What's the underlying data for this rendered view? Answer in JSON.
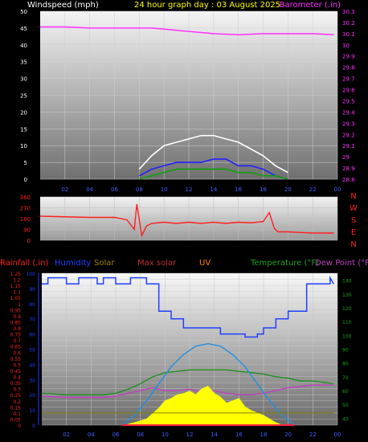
{
  "chart_data": [
    {
      "type": "line",
      "header": {
        "left": "Windspeed (mph)",
        "center": "24 hour graph day : 03 August 2025",
        "right": "Barometer (.in)"
      },
      "left_ticks": [
        "0",
        "5",
        "10",
        "15",
        "20",
        "25",
        "30",
        "35",
        "40",
        "45",
        "50"
      ],
      "right_ticks": [
        "28.8",
        "28.9",
        "29",
        "29.1",
        "29.2",
        "29.3",
        "29.4",
        "29.5",
        "29.6",
        "29.7",
        "29.8",
        "29.9",
        "30",
        "30.1",
        "30.2",
        "30.3"
      ],
      "x_ticks": [
        "02",
        "04",
        "06",
        "08",
        "10",
        "12",
        "14",
        "16",
        "18",
        "20",
        "22",
        "00"
      ],
      "ylim_left": [
        0,
        50
      ],
      "ylim_right": [
        28.8,
        30.3
      ],
      "series": [
        {
          "name": "Barometer (.in)",
          "color": "#ff30ff",
          "x": [
            0,
            2,
            4,
            6,
            8,
            9,
            10,
            12,
            14,
            16,
            18,
            20,
            22,
            23.7
          ],
          "values": [
            30.16,
            30.16,
            30.15,
            30.15,
            30.15,
            30.15,
            30.14,
            30.12,
            30.1,
            30.09,
            30.1,
            30.1,
            30.1,
            30.09
          ]
        },
        {
          "color": "#ffffff",
          "x": [
            8,
            9,
            10,
            11,
            12,
            13,
            14,
            15,
            16,
            17,
            18,
            19,
            20
          ],
          "values": [
            3,
            7,
            10,
            11,
            12,
            13,
            13,
            12,
            11,
            9,
            7,
            4,
            2
          ]
        },
        {
          "color": "#2020ff",
          "x": [
            8,
            9,
            10,
            11,
            12,
            13,
            14,
            15,
            16,
            17,
            18,
            19,
            20
          ],
          "values": [
            1,
            3,
            4,
            5,
            5,
            5,
            6,
            6,
            4,
            4,
            3,
            1,
            0
          ]
        },
        {
          "color": "#10a010",
          "x": [
            8,
            9,
            10,
            11,
            12,
            13,
            14,
            15,
            16,
            17,
            18,
            19,
            20
          ],
          "values": [
            0,
            1,
            2,
            3,
            3,
            3,
            3,
            3,
            2,
            2,
            1,
            1,
            0
          ]
        }
      ]
    },
    {
      "type": "line",
      "direction_labels": [
        "N",
        "W",
        "S",
        "E",
        "N"
      ],
      "left_ticks": [
        "0",
        "90",
        "180",
        "270",
        "360"
      ],
      "x_ticks": [],
      "ylim": [
        0,
        360
      ],
      "series": [
        {
          "color": "#ff2020",
          "x": [
            0,
            2,
            4,
            6,
            7,
            7.6,
            7.8,
            8.2,
            8.6,
            9,
            10,
            11,
            12,
            13,
            14,
            15,
            16,
            17,
            18,
            18.5,
            18.9,
            19.2,
            20,
            22,
            23.7
          ],
          "values": [
            200,
            195,
            190,
            190,
            170,
            90,
            300,
            40,
            120,
            140,
            150,
            140,
            150,
            140,
            150,
            140,
            150,
            145,
            155,
            230,
            100,
            70,
            70,
            60,
            60
          ]
        }
      ]
    },
    {
      "type": "line",
      "header": {
        "rain": "Rainfall (.in)",
        "humidity": "Humidity",
        "solar": "Solar",
        "max_solar": "Max solar",
        "uv": "UV",
        "temperature": "Temperature (°F)",
        "dew_point": "Dew Point (°F)"
      },
      "left_ticks": [
        "0",
        "0.05",
        "0.1",
        "0.15",
        "0.2",
        "0.25",
        "0.3",
        "0.35",
        "0.4",
        "0.45",
        "0.5",
        "0.55",
        "0.6",
        "0.65",
        "0.7",
        "0.75",
        "0.8",
        "0.85",
        "0.9",
        "0.95",
        "1",
        "1.05",
        "1.1",
        "1.15",
        "1.2",
        "1.25"
      ],
      "humidity_ticks": [
        "0",
        "10",
        "20",
        "30",
        "40",
        "50",
        "60",
        "70",
        "80",
        "90",
        "100"
      ],
      "right_ticks": [
        "40",
        "50",
        "60",
        "70",
        "80",
        "90",
        "100",
        "110",
        "120",
        "130",
        "140"
      ],
      "x_ticks": [
        "02",
        "04",
        "06",
        "08",
        "10",
        "12",
        "14",
        "16",
        "18",
        "20",
        "22",
        "00"
      ],
      "ylim_left": [
        0,
        1.25
      ],
      "ylim_right": [
        35,
        145
      ],
      "series": [
        {
          "name": "Humidity",
          "color": "#2040ff",
          "x": [
            0,
            0.5,
            0.5,
            2,
            2,
            3,
            3,
            4.5,
            4.5,
            5,
            5,
            6,
            6,
            7.2,
            7.2,
            8.5,
            8.5,
            9.5,
            9.5,
            10.5,
            10.5,
            11.5,
            11.5,
            14.5,
            14.5,
            16.5,
            16.5,
            17.5,
            17.5,
            18,
            18,
            19,
            19,
            20,
            20,
            21.5,
            21.5,
            23.4,
            23.4,
            23.7
          ],
          "values": [
            93,
            93,
            97,
            97,
            93,
            93,
            97,
            97,
            93,
            93,
            97,
            97,
            93,
            93,
            97,
            97,
            93,
            93,
            75,
            75,
            70,
            70,
            64,
            64,
            60,
            60,
            58,
            58,
            60,
            60,
            64,
            64,
            70,
            70,
            75,
            75,
            93,
            93,
            97,
            93
          ]
        },
        {
          "name": "Temperature (°F)",
          "color": "#209020",
          "x": [
            0,
            2,
            4,
            5,
            6,
            7,
            8,
            9,
            10,
            11,
            12,
            13,
            14,
            15,
            16,
            17,
            18,
            19,
            20,
            21,
            22,
            23.7
          ],
          "values": [
            58,
            57,
            57,
            57,
            58,
            61,
            65,
            70,
            73,
            74,
            75,
            75,
            75,
            75,
            74,
            73,
            72,
            70,
            69,
            67,
            67,
            65
          ]
        },
        {
          "name": "Dew Point (°F)",
          "color": "#c040c0",
          "x": [
            0,
            2,
            4,
            5,
            6,
            7,
            8,
            9,
            10,
            11,
            12,
            13,
            14,
            15,
            16,
            17,
            18,
            19,
            20,
            21,
            22,
            23.7
          ],
          "values": [
            56,
            55,
            55,
            55,
            56,
            58,
            60,
            62,
            60,
            60,
            61,
            59,
            60,
            58,
            57,
            57,
            58,
            60,
            62,
            63,
            64,
            64
          ]
        },
        {
          "name": "UV",
          "color": "#2090e0",
          "x": [
            6.5,
            7.5,
            8.5,
            9.5,
            10.5,
            11.5,
            12.5,
            13.5,
            14.5,
            15.5,
            16.5,
            17.5,
            18.5,
            19.5,
            20.5
          ],
          "values": [
            0,
            0.08,
            0.2,
            0.34,
            0.48,
            0.58,
            0.65,
            0.67,
            0.65,
            0.58,
            0.48,
            0.34,
            0.2,
            0.08,
            0
          ]
        },
        {
          "name": "Solar",
          "color": "#ffff00",
          "x": [
            6.7,
            7.5,
            8.5,
            9.5,
            10,
            10.5,
            11,
            11.5,
            12,
            12.5,
            13,
            13.5,
            14,
            14.5,
            15,
            15.5,
            16,
            16.5,
            17,
            17.5,
            18,
            18.5,
            19,
            19.5
          ],
          "values": [
            0,
            0.02,
            0.05,
            0.14,
            0.2,
            0.22,
            0.25,
            0.26,
            0.28,
            0.25,
            0.3,
            0.32,
            0.26,
            0.23,
            0.18,
            0.2,
            0.22,
            0.15,
            0.12,
            0.1,
            0.08,
            0.05,
            0.02,
            0
          ]
        },
        {
          "name": "Max solar",
          "color": "#ff2040",
          "x": [
            6.5,
            7.5,
            8.5,
            9.5,
            10.5,
            11.5,
            12.5,
            13.5,
            14.5,
            15.5,
            16.5,
            17.5,
            18.5,
            19.5,
            20.5
          ],
          "values": [
            0,
            0,
            0,
            0,
            0,
            0,
            0,
            0,
            0,
            0,
            0,
            0,
            0,
            0,
            0
          ]
        },
        {
          "name": "Rainfall (.in)",
          "color": "#808000",
          "x": [
            0,
            23.7
          ],
          "values": [
            0.1,
            0.1
          ]
        }
      ]
    }
  ]
}
